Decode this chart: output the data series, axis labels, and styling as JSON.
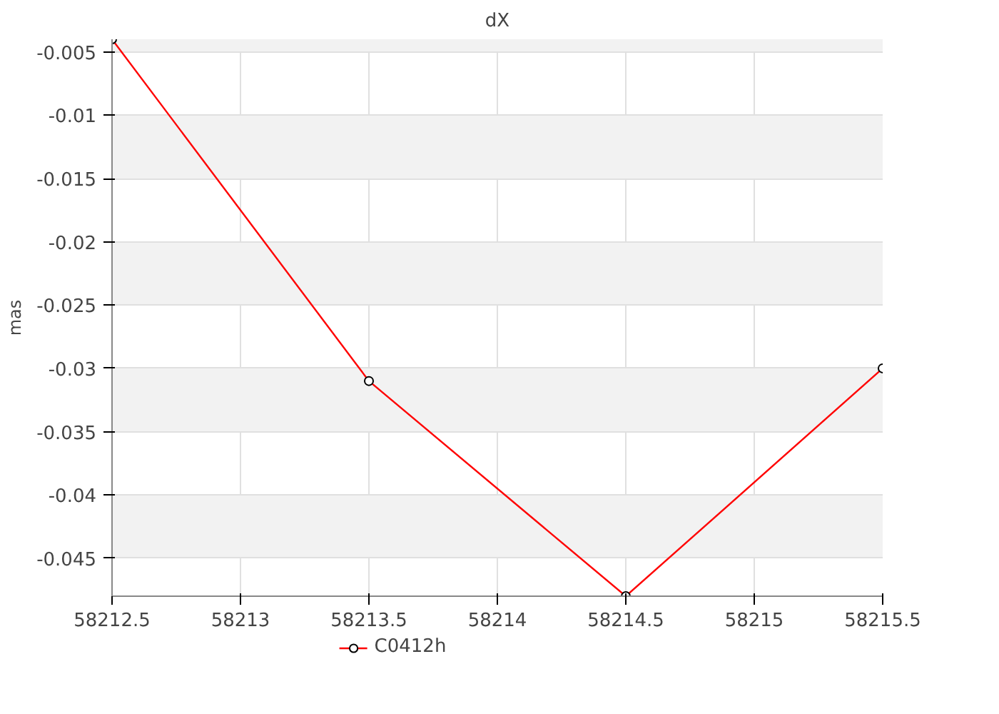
{
  "chart_data": {
    "type": "line",
    "title": "dX",
    "ylabel": "mas",
    "x": [
      58212.5,
      58213.5,
      58214.5,
      58215.5
    ],
    "series": [
      {
        "name": "C0412h",
        "color": "#ff0000",
        "values": [
          -0.004,
          -0.031,
          -0.048,
          -0.03
        ]
      }
    ],
    "xlim": [
      58212.5,
      58215.5
    ],
    "xticks": [
      58212.5,
      58213,
      58213.5,
      58214,
      58214.5,
      58215,
      58215.5
    ],
    "ylim": [
      -0.048,
      -0.004
    ],
    "yticks": [
      -0.045,
      -0.04,
      -0.035,
      -0.03,
      -0.025,
      -0.02,
      -0.015,
      -0.01,
      -0.005
    ],
    "grid": true,
    "legend": "bottom",
    "marker": "circle",
    "line_style": "solid"
  }
}
